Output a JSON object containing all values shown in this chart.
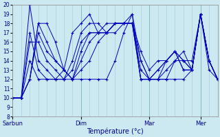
{
  "xlabel": "Température (°c)",
  "xlim": [
    0,
    72
  ],
  "ylim": [
    8,
    20
  ],
  "yticks": [
    8,
    9,
    10,
    11,
    12,
    13,
    14,
    15,
    16,
    17,
    18,
    19,
    20
  ],
  "xtick_positions": [
    0,
    24,
    48,
    66
  ],
  "xtick_labels": [
    "Sarbun",
    "Dim",
    "Mar",
    "Mer"
  ],
  "bg_color": "#cce8f0",
  "grid_color": "#a0c8d8",
  "line_color": "#0000bb",
  "series": [
    {
      "x": [
        0,
        3,
        6,
        9,
        12,
        15,
        18,
        21,
        24,
        27,
        30,
        33,
        36,
        39,
        42,
        45,
        48,
        51,
        54,
        57,
        60,
        63,
        66,
        69,
        72
      ],
      "y": [
        10,
        10,
        12,
        18,
        18,
        16,
        13,
        12,
        12,
        12,
        12,
        12,
        14,
        17,
        19,
        12,
        12,
        12,
        12,
        12,
        12,
        13,
        19,
        13,
        12
      ]
    },
    {
      "x": [
        0,
        3,
        6,
        9,
        12,
        15,
        18,
        21,
        24,
        27,
        30,
        33,
        36,
        39,
        42,
        45,
        48,
        51,
        54,
        57,
        60,
        63,
        66,
        69,
        72
      ],
      "y": [
        10,
        10,
        12,
        18,
        16,
        14,
        13,
        12,
        13,
        14,
        16,
        17,
        17,
        18,
        18,
        12,
        12,
        12,
        12,
        14,
        14,
        13,
        19,
        14,
        12
      ]
    },
    {
      "x": [
        0,
        3,
        6,
        9,
        12,
        15,
        18,
        21,
        24,
        27,
        30,
        33,
        36,
        39,
        42,
        45,
        48,
        51,
        54,
        57,
        60,
        63,
        66,
        69,
        72
      ],
      "y": [
        10,
        10,
        12,
        17,
        15,
        14,
        13,
        12,
        14,
        16,
        17,
        18,
        18,
        18,
        18,
        12,
        12,
        12,
        13,
        14,
        15,
        13,
        19,
        14,
        12
      ]
    },
    {
      "x": [
        0,
        3,
        6,
        9,
        12,
        15,
        18,
        21,
        24,
        27,
        30,
        33,
        36,
        39,
        42,
        45,
        48,
        51,
        54,
        57,
        60,
        63,
        66,
        69,
        72
      ],
      "y": [
        10,
        10,
        16,
        16,
        14,
        13,
        12,
        12,
        15,
        17,
        17,
        17,
        18,
        18,
        18,
        13,
        12,
        12,
        14,
        15,
        14,
        13,
        19,
        14,
        12
      ]
    },
    {
      "x": [
        0,
        3,
        6,
        9,
        12,
        15,
        18,
        21,
        24,
        27,
        30,
        33,
        36,
        39,
        42,
        45,
        48,
        51,
        54,
        57,
        60,
        63,
        66,
        69,
        72
      ],
      "y": [
        10,
        10,
        20,
        14,
        13,
        12,
        12,
        13,
        16,
        17,
        17,
        17,
        18,
        18,
        18,
        14,
        12,
        13,
        14,
        15,
        13,
        13,
        19,
        14,
        12
      ]
    },
    {
      "x": [
        0,
        3,
        6,
        9,
        12,
        15,
        18,
        21,
        24,
        27,
        30,
        33,
        36,
        39,
        42,
        45,
        48,
        51,
        54,
        57,
        60,
        63,
        66,
        69,
        72
      ],
      "y": [
        10,
        10,
        17,
        13,
        12,
        12,
        12,
        14,
        17,
        18,
        18,
        17,
        18,
        18,
        19,
        14,
        12,
        13,
        14,
        15,
        13,
        13,
        19,
        14,
        12
      ]
    },
    {
      "x": [
        0,
        3,
        6,
        9,
        12,
        15,
        18,
        21,
        24,
        27,
        30,
        33,
        36,
        39,
        42,
        45,
        48,
        51,
        54,
        57,
        60,
        63,
        66,
        69,
        72
      ],
      "y": [
        10,
        10,
        14,
        12,
        12,
        12,
        13,
        17,
        18,
        19,
        17,
        17,
        18,
        18,
        18,
        15,
        13,
        14,
        14,
        15,
        14,
        14,
        19,
        14,
        12
      ]
    }
  ],
  "figwidth": 3.2,
  "figheight": 2.0,
  "dpi": 100
}
